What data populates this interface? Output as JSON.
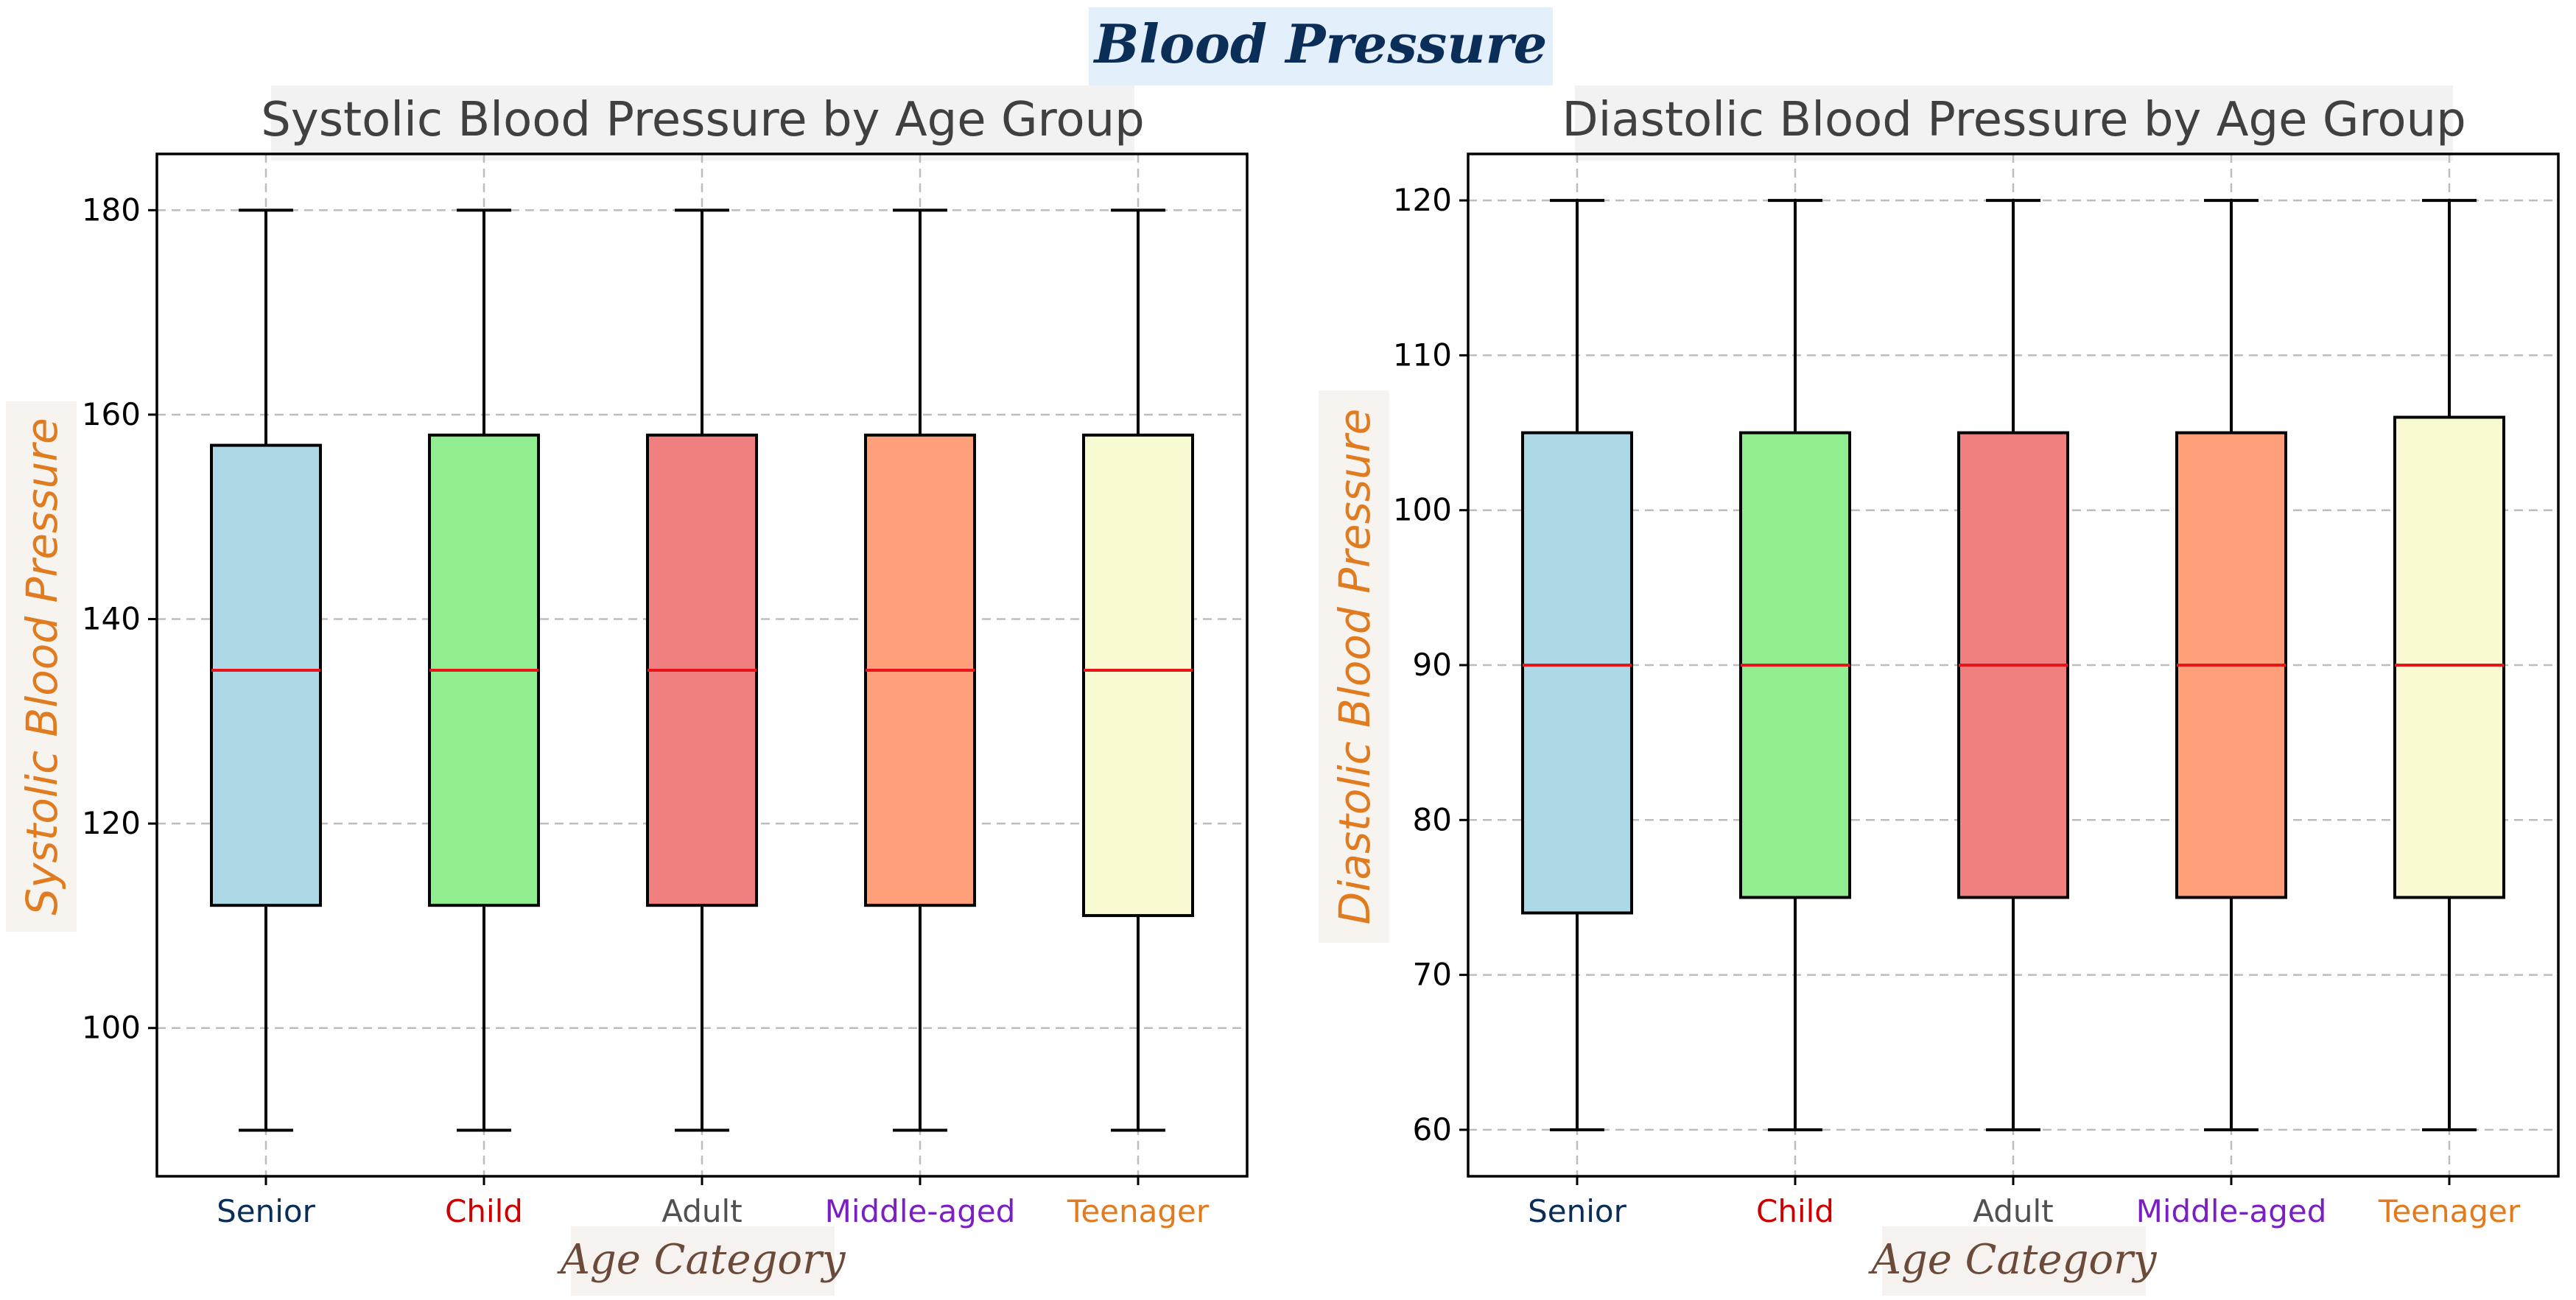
{
  "figure": {
    "suptitle": "Blood Pressure",
    "colors": {
      "suptitle_text": "#0b2e59",
      "suptitle_bg": "#e3f0fb",
      "title_text": "#404040",
      "title_bg": "#f2f2f2",
      "ylabel_text": "#e07b20",
      "ylabel_bg": "#f7f3ef",
      "xlabel_text": "#6b4a3a",
      "xlabel_bg": "#f5f2ef",
      "median": "#e8141a",
      "grid": "#bdbdbd",
      "box_edge": "#000000"
    }
  },
  "chart_data": [
    {
      "type": "box",
      "title": "Systolic Blood Pressure by Age Group",
      "xlabel": "Age Category",
      "ylabel": "Systolic Blood Pressure",
      "ylim": [
        85.5,
        185.5
      ],
      "yticks": [
        100,
        120,
        140,
        160,
        180
      ],
      "grid": true,
      "categories": [
        "Senior",
        "Child",
        "Adult",
        "Middle-aged",
        "Teenager"
      ],
      "category_colors": [
        "#0b2e59",
        "#cc0000",
        "#505050",
        "#7a1fc2",
        "#e07b20"
      ],
      "box_colors": [
        "#add8e6",
        "#90ee90",
        "#f08080",
        "#ffa07a",
        "#fafad2"
      ],
      "boxes": [
        {
          "whisker_low": 90,
          "q1": 112,
          "median": 135,
          "q3": 157,
          "whisker_high": 180
        },
        {
          "whisker_low": 90,
          "q1": 112,
          "median": 135,
          "q3": 158,
          "whisker_high": 180
        },
        {
          "whisker_low": 90,
          "q1": 112,
          "median": 135,
          "q3": 158,
          "whisker_high": 180
        },
        {
          "whisker_low": 90,
          "q1": 112,
          "median": 135,
          "q3": 158,
          "whisker_high": 180
        },
        {
          "whisker_low": 90,
          "q1": 111,
          "median": 135,
          "q3": 158,
          "whisker_high": 180
        }
      ]
    },
    {
      "type": "box",
      "title": "Diastolic Blood Pressure by Age Group",
      "xlabel": "Age Category",
      "ylabel": "Diastolic Blood Pressure",
      "ylim": [
        57,
        123
      ],
      "yticks": [
        60,
        70,
        80,
        90,
        100,
        110,
        120
      ],
      "grid": true,
      "categories": [
        "Senior",
        "Child",
        "Adult",
        "Middle-aged",
        "Teenager"
      ],
      "category_colors": [
        "#0b2e59",
        "#cc0000",
        "#505050",
        "#7a1fc2",
        "#e07b20"
      ],
      "box_colors": [
        "#add8e6",
        "#90ee90",
        "#f08080",
        "#ffa07a",
        "#fafad2"
      ],
      "boxes": [
        {
          "whisker_low": 60,
          "q1": 74,
          "median": 90,
          "q3": 105,
          "whisker_high": 120
        },
        {
          "whisker_low": 60,
          "q1": 75,
          "median": 90,
          "q3": 105,
          "whisker_high": 120
        },
        {
          "whisker_low": 60,
          "q1": 75,
          "median": 90,
          "q3": 105,
          "whisker_high": 120
        },
        {
          "whisker_low": 60,
          "q1": 75,
          "median": 90,
          "q3": 105,
          "whisker_high": 120
        },
        {
          "whisker_low": 60,
          "q1": 75,
          "median": 90,
          "q3": 106,
          "whisker_high": 120
        }
      ]
    }
  ]
}
